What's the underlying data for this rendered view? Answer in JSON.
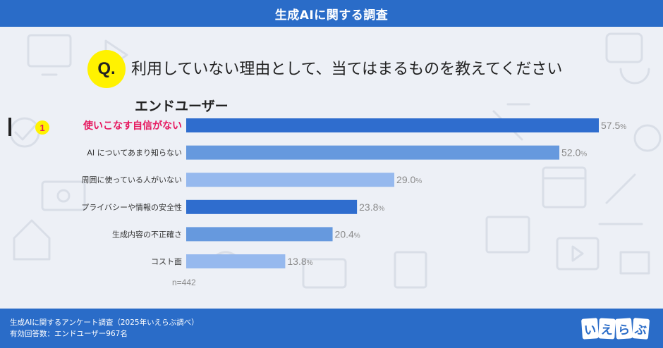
{
  "header": {
    "title": "生成AIに関する調査"
  },
  "question": {
    "badge": "Q.",
    "text": "利用していない理由として、当てはまるものを教えてください"
  },
  "segment": "エンドユーザー",
  "rank_badge": "1",
  "colors": {
    "header": "#2a6cc8",
    "highlight_label": "#e6185f",
    "bar_dark": "#2f6dce",
    "bar_mid": "#6699de",
    "bar_light": "#96b9ee",
    "value_text": "#8a8a8a"
  },
  "chart_data": {
    "type": "bar",
    "orientation": "horizontal",
    "categories": [
      "使いこなす自信がない",
      "AI についてあまり知らない",
      "周囲に使っている人がいない",
      "プライバシーや情報の安全性",
      "生成内容の不正確さ",
      "コスト面"
    ],
    "values": [
      57.5,
      52.0,
      29.0,
      23.8,
      20.4,
      13.8
    ],
    "value_labels": [
      "57.5",
      "52.0",
      "29.0",
      "23.8",
      "20.4",
      "13.8"
    ],
    "unit": "%",
    "highlight_index": 0,
    "bar_color_keys": [
      "bar_dark",
      "bar_mid",
      "bar_light",
      "bar_dark",
      "bar_mid",
      "bar_light"
    ]
  },
  "sample": "n=442",
  "footer": {
    "line1": "生成AIに関するアンケート調査（2025年いえらぶ調べ）",
    "line2": "有効回答数：エンドユーザー967名"
  },
  "logo": [
    "い",
    "え",
    "ら",
    "ぶ"
  ]
}
